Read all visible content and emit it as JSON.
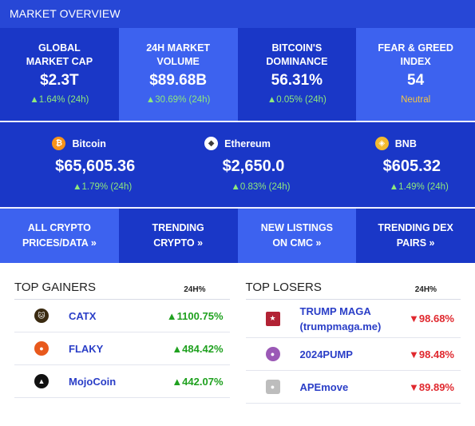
{
  "header": {
    "title": "MARKET OVERVIEW"
  },
  "stats": [
    {
      "label_1": "GLOBAL",
      "label_2": "MARKET CAP",
      "value": "$2.3T",
      "change": "▲1.64% (24h)"
    },
    {
      "label_1": "24H MARKET",
      "label_2": "VOLUME",
      "value": "$89.68B",
      "change": "▲30.69% (24h)"
    },
    {
      "label_1": "BITCOIN'S",
      "label_2": "DOMINANCE",
      "value": "56.31%",
      "change": "▲0.05% (24h)"
    },
    {
      "label_1": "FEAR & GREED",
      "label_2": "INDEX",
      "value": "54",
      "status": "Neutral"
    }
  ],
  "coins": [
    {
      "name": "Bitcoin",
      "icon": "bitcoin-icon",
      "icon_glyph": "₿",
      "icon_color": "#f7931a",
      "price": "$65,605.36",
      "change": "▲1.79% (24h)"
    },
    {
      "name": "Ethereum",
      "icon": "ethereum-icon",
      "icon_glyph": "◆",
      "icon_color": "#ffffff",
      "price": "$2,650.0",
      "change": "▲0.83% (24h)"
    },
    {
      "name": "BNB",
      "icon": "bnb-icon",
      "icon_glyph": "◈",
      "icon_color": "#f3ba2f",
      "price": "$605.32",
      "change": "▲1.49% (24h)"
    }
  ],
  "links": [
    {
      "line_1": "ALL CRYPTO",
      "line_2": "PRICES/DATA »"
    },
    {
      "line_1": "TRENDING",
      "line_2": "CRYPTO »"
    },
    {
      "line_1": "NEW LISTINGS",
      "line_2": "ON CMC »"
    },
    {
      "line_1": "TRENDING DEX",
      "line_2": "PAIRS »"
    }
  ],
  "gainers": {
    "title": "TOP GAINERS",
    "column": "24H%",
    "rows": [
      {
        "name": "CATX",
        "change": "▲1100.75%",
        "icon": "catx-icon",
        "icon_color": "#3a2a10"
      },
      {
        "name": "FLAKY",
        "change": "▲484.42%",
        "icon": "flaky-icon",
        "icon_color": "#e8591c"
      },
      {
        "name": "MojoCoin",
        "change": "▲442.07%",
        "icon": "mojocoin-icon",
        "icon_color": "#111111"
      }
    ]
  },
  "losers": {
    "title": "TOP LOSERS",
    "column": "24H%",
    "rows": [
      {
        "name_1": "TRUMP MAGA",
        "name_2": "(trumpmaga.me)",
        "change": "▼98.68%",
        "icon": "trump-maga-icon",
        "icon_color": "#b22234"
      },
      {
        "name_1": "2024PUMP",
        "name_2": "",
        "change": "▼98.48%",
        "icon": "2024pump-icon",
        "icon_color": "#9b59b6"
      },
      {
        "name_1": "APEmove",
        "name_2": "",
        "change": "▼89.89%",
        "icon": "apemove-icon",
        "icon_color": "#bdbdbd"
      }
    ]
  },
  "colors": {
    "header": "#2747d6",
    "panel_dark": "#1a37c7",
    "panel_light": "#3d62ef",
    "up": "#1fa11f",
    "down": "#e0282e",
    "link": "#2a3ec7"
  }
}
